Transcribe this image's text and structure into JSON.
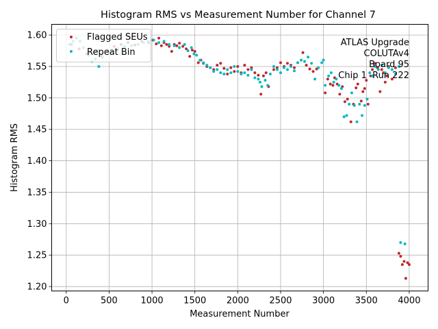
{
  "chart_data": {
    "type": "scatter",
    "title": "Histogram RMS vs Measurement Number for Channel 7",
    "xlabel": "Measurement Number",
    "ylabel": "Histogram RMS",
    "xlim": [
      -170,
      4220
    ],
    "ylim": [
      1.193,
      1.617
    ],
    "x_ticks": [
      0,
      500,
      1000,
      1500,
      2000,
      2500,
      3000,
      3500,
      4000
    ],
    "y_ticks": [
      1.2,
      1.25,
      1.3,
      1.35,
      1.4,
      1.45,
      1.5,
      1.55,
      1.6
    ],
    "y_tick_labels": [
      "1.20",
      "1.25",
      "1.30",
      "1.35",
      "1.40",
      "1.45",
      "1.50",
      "1.55",
      "1.60"
    ],
    "grid": true,
    "legend_position": "upper-left",
    "annotations": [
      "ATLAS Upgrade",
      "COLUTAv4",
      "Board 95",
      "Chip 1  Run 222"
    ],
    "series": [
      {
        "name": "Flagged SEUs",
        "color": "#c0282d",
        "marker": "circle",
        "x": [
          60,
          150,
          240,
          330,
          410,
          480,
          560,
          640,
          720,
          800,
          880,
          960,
          1010,
          1050,
          1080,
          1110,
          1140,
          1170,
          1200,
          1230,
          1260,
          1290,
          1320,
          1360,
          1400,
          1440,
          1470,
          1500,
          1540,
          1570,
          1600,
          1640,
          1680,
          1720,
          1760,
          1800,
          1840,
          1880,
          1920,
          1960,
          2000,
          2040,
          2080,
          2120,
          2160,
          2200,
          2240,
          2270,
          2300,
          2330,
          2360,
          2420,
          2460,
          2500,
          2540,
          2580,
          2620,
          2660,
          2700,
          2760,
          2800,
          2840,
          2880,
          2920,
          3020,
          3050,
          3080,
          3110,
          3130,
          3160,
          3190,
          3220,
          3250,
          3280,
          3320,
          3350,
          3380,
          3400,
          3440,
          3460,
          3480,
          3500,
          3520,
          3550,
          3570,
          3600,
          3630,
          3660,
          3680,
          3700,
          3720,
          3740,
          3760,
          3800,
          3840,
          3880,
          3900,
          3920,
          3940,
          3960,
          3980,
          4000
        ],
        "y": [
          1.585,
          1.578,
          1.57,
          1.572,
          1.567,
          1.575,
          1.582,
          1.585,
          1.588,
          1.584,
          1.59,
          1.588,
          1.592,
          1.586,
          1.595,
          1.583,
          1.588,
          1.585,
          1.582,
          1.574,
          1.585,
          1.583,
          1.587,
          1.582,
          1.578,
          1.566,
          1.576,
          1.574,
          1.556,
          1.56,
          1.555,
          1.55,
          1.548,
          1.545,
          1.552,
          1.555,
          1.547,
          1.538,
          1.548,
          1.542,
          1.55,
          1.54,
          1.552,
          1.545,
          1.548,
          1.54,
          1.536,
          1.506,
          1.535,
          1.54,
          1.518,
          1.545,
          1.548,
          1.556,
          1.55,
          1.555,
          1.552,
          1.548,
          1.556,
          1.572,
          1.552,
          1.546,
          1.542,
          1.546,
          1.508,
          1.53,
          1.522,
          1.52,
          1.532,
          1.522,
          1.506,
          1.518,
          1.494,
          1.498,
          1.462,
          1.49,
          1.516,
          1.522,
          1.495,
          1.51,
          1.515,
          1.528,
          1.49,
          1.535,
          1.545,
          1.555,
          1.548,
          1.51,
          1.545,
          1.54,
          1.525,
          1.535,
          1.55,
          1.53,
          1.548,
          1.253,
          1.248,
          1.235,
          1.24,
          1.213,
          1.238,
          1.235
        ]
      },
      {
        "name": "Repeat Bin",
        "color": "#00b8c4",
        "marker": "circle",
        "x": [
          40,
          80,
          120,
          160,
          200,
          260,
          300,
          340,
          360,
          380,
          420,
          520,
          600,
          680,
          760,
          840,
          900,
          960,
          1020,
          1080,
          1140,
          1200,
          1260,
          1320,
          1380,
          1420,
          1460,
          1490,
          1520,
          1560,
          1600,
          1640,
          1680,
          1720,
          1760,
          1800,
          1840,
          1880,
          1920,
          1960,
          2000,
          2040,
          2080,
          2120,
          2160,
          2200,
          2240,
          2260,
          2280,
          2320,
          2350,
          2380,
          2420,
          2460,
          2500,
          2540,
          2580,
          2620,
          2660,
          2700,
          2740,
          2780,
          2820,
          2860,
          2900,
          2940,
          2980,
          3000,
          3020,
          3060,
          3090,
          3120,
          3150,
          3180,
          3210,
          3240,
          3270,
          3300,
          3330,
          3360,
          3390,
          3420,
          3450,
          3480,
          3510,
          3540,
          3570,
          3600,
          3640,
          3680,
          3720,
          3760,
          3800,
          3840,
          3880,
          3900,
          3950
        ],
        "y": [
          1.585,
          1.59,
          1.595,
          1.59,
          1.58,
          1.568,
          1.558,
          1.562,
          1.575,
          1.55,
          1.565,
          1.572,
          1.578,
          1.582,
          1.583,
          1.585,
          1.588,
          1.59,
          1.592,
          1.588,
          1.59,
          1.585,
          1.583,
          1.58,
          1.585,
          1.575,
          1.58,
          1.57,
          1.568,
          1.56,
          1.556,
          1.552,
          1.548,
          1.542,
          1.545,
          1.54,
          1.538,
          1.545,
          1.54,
          1.55,
          1.542,
          1.538,
          1.54,
          1.536,
          1.545,
          1.532,
          1.53,
          1.525,
          1.518,
          1.528,
          1.52,
          1.538,
          1.55,
          1.545,
          1.54,
          1.548,
          1.545,
          1.55,
          1.543,
          1.556,
          1.56,
          1.558,
          1.565,
          1.555,
          1.53,
          1.548,
          1.556,
          1.56,
          1.52,
          1.535,
          1.54,
          1.525,
          1.53,
          1.52,
          1.515,
          1.47,
          1.472,
          1.49,
          1.508,
          1.488,
          1.462,
          1.49,
          1.472,
          1.488,
          1.498,
          1.54,
          1.535,
          1.55,
          1.545,
          1.552,
          1.54,
          1.548,
          1.545,
          1.538,
          1.55,
          1.27,
          1.268
        ]
      }
    ]
  }
}
